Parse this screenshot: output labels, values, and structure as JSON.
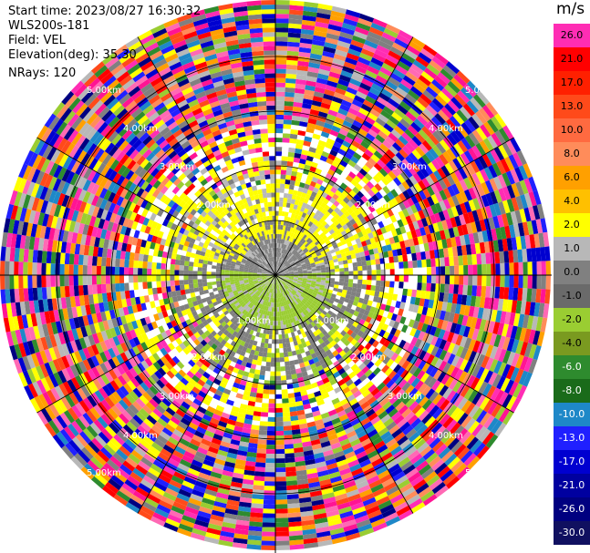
{
  "meta": {
    "start_time": "Start time: 2023/08/27 16:30:32",
    "instrument": "WLS200s-181",
    "field": "Field: VEL",
    "elevation": "Elevation(deg): 35.30",
    "nrays": "NRays: 120"
  },
  "chart_data": {
    "type": "heatmap",
    "projection": "polar-ppi",
    "field": "VEL",
    "units": "m/s",
    "n_rays": 120,
    "range_rings": [
      "1.00km",
      "1.00km",
      "2.00km",
      "2.00km",
      "3.00km",
      "3.00km",
      "4.00km",
      "4.00km",
      "5.00km",
      "5.00km"
    ],
    "colorbar": {
      "units": "m/s",
      "tick_labels": [
        "26.0",
        "21.0",
        "17.0",
        "13.0",
        "10.0",
        "8.0",
        "6.0",
        "4.0",
        "2.0",
        "1.0",
        "0.0",
        "-1.0",
        "-2.0",
        "-4.0",
        "-6.0",
        "-8.0",
        "-10.0",
        "-13.0",
        "-17.0",
        "-21.0",
        "-26.0",
        "-30.0"
      ],
      "colors": [
        "#ff2db4",
        "#ff0000",
        "#ff2000",
        "#ff4a1a",
        "#ff6a40",
        "#ff8c5a",
        "#ffa000",
        "#ffc000",
        "#ffff00",
        "#b8b8b8",
        "#808080",
        "#6a6a6a",
        "#9acd32",
        "#7a9a20",
        "#2e8b2e",
        "#1a6b1a",
        "#1e88c8",
        "#2020ff",
        "#0000d0",
        "#0000a0",
        "#000080",
        "#101060"
      ]
    }
  }
}
